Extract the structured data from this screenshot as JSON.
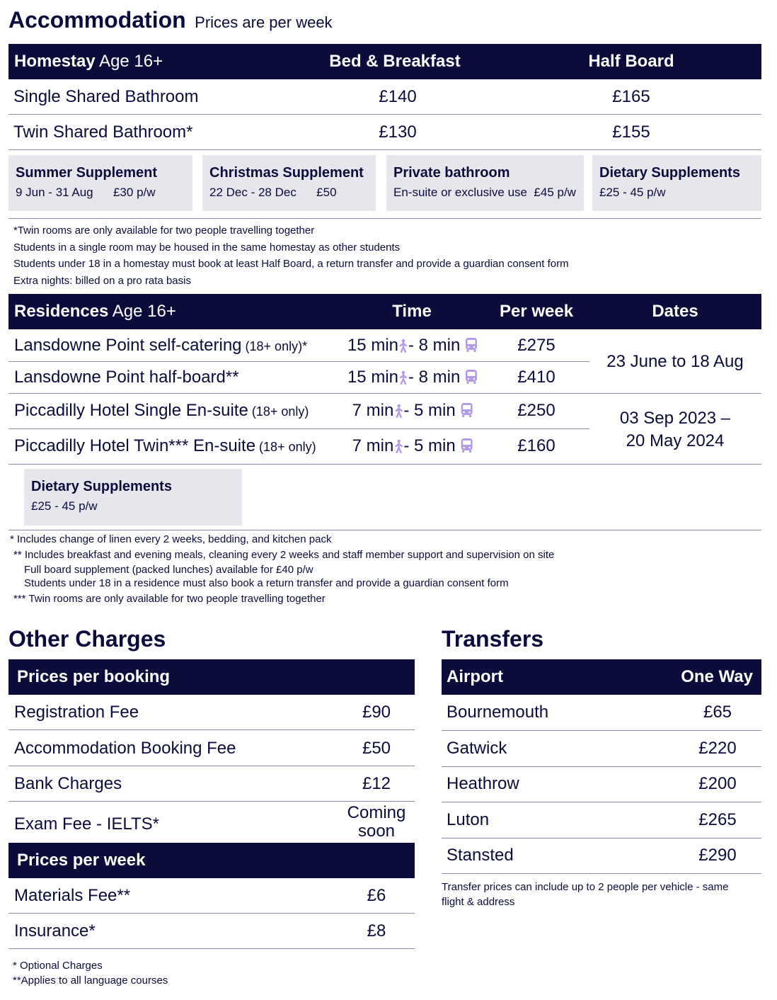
{
  "accommodation": {
    "title": "Accommodation",
    "subtitle": "Prices are per week",
    "homestay": {
      "header": {
        "name_bold": "Homestay",
        "name_rest": " Age 16+",
        "bb": "Bed & Breakfast",
        "hb": "Half Board"
      },
      "rows": [
        {
          "name": "Single Shared Bathroom",
          "bb": "£140",
          "hb": "£165"
        },
        {
          "name": "Twin Shared Bathroom*",
          "bb": "£130",
          "hb": "£155"
        }
      ],
      "supplements": [
        {
          "title": "Summer Supplement",
          "detail": "9 Jun - 31 Aug      £30 p/w"
        },
        {
          "title": "Christmas Supplement",
          "detail": "22 Dec - 28 Dec      £50"
        },
        {
          "title": "Private bathroom",
          "detail": "En-suite or exclusive use  £45 p/w"
        },
        {
          "title": "Dietary Supplements",
          "detail": "£25 - 45 p/w"
        }
      ],
      "notes": [
        "*Twin rooms are only available for two people travelling together",
        "Students in a single room may be housed in the same homestay  as other students",
        "Students under 18 in a homestay must book at least Half Board, a return transfer and provide a guardian consent form",
        "Extra nights: billed on a pro rata basis"
      ]
    },
    "residences": {
      "header": {
        "name_bold": "Residences",
        "name_rest": " Age 16+",
        "time": "Time",
        "per_week": "Per week",
        "dates": "Dates"
      },
      "rows": [
        {
          "name": "Lansdowne Point self-catering",
          "suffix": " (18+ only)*",
          "walk": "15 min",
          "bus": "- 8 min",
          "price": "£275"
        },
        {
          "name": "Lansdowne Point half-board**",
          "suffix": "",
          "walk": "15 min",
          "bus": "- 8 min",
          "price": "£410"
        },
        {
          "name": "Piccadilly Hotel Single En-suite",
          "suffix": " (18+ only)",
          "walk": "7 min",
          "bus": "- 5 min",
          "price": "£250"
        },
        {
          "name": "Piccadilly Hotel Twin*** En-suite",
          "suffix": " (18+ only)",
          "walk": "7 min",
          "bus": "- 5 min",
          "price": "£160"
        }
      ],
      "dates": [
        "23 June to 18 Aug",
        "03 Sep 2023 –",
        "20 May 2024"
      ],
      "supplement": {
        "title": "Dietary Supplements",
        "detail": "£25 - 45 p/w"
      },
      "notes": [
        "* Includes change of linen every 2 weeks, bedding, and kitchen pack",
        "** Includes breakfast and evening meals, cleaning every 2 weeks and staff member support and supervision on site",
        "Full board supplement (packed lunches) available for £40 p/w",
        "Students under 18 in a residence must also book a return transfer and provide a guardian consent form",
        "*** Twin rooms are only available for two people travelling together"
      ]
    }
  },
  "other_charges": {
    "title": "Other Charges",
    "per_booking": "Prices per booking",
    "booking_rows": [
      {
        "name": "Registration Fee",
        "price": "£90"
      },
      {
        "name": "Accommodation Booking Fee",
        "price": "£50"
      },
      {
        "name": "Bank Charges",
        "price": "£12"
      },
      {
        "name": "Exam Fee - IELTS*",
        "price": "Coming soon"
      }
    ],
    "per_week": "Prices per week",
    "week_rows": [
      {
        "name": "Materials Fee**",
        "price": "£6"
      },
      {
        "name": "Insurance*",
        "price": "£8"
      }
    ],
    "notes": [
      "* Optional Charges",
      "**Applies to all language courses"
    ]
  },
  "transfers": {
    "title": "Transfers",
    "header": {
      "airport": "Airport",
      "one_way": "One Way"
    },
    "rows": [
      {
        "name": "Bournemouth",
        "price": "£65"
      },
      {
        "name": "Gatwick",
        "price": "£220"
      },
      {
        "name": "Heathrow",
        "price": "£200"
      },
      {
        "name": "Luton",
        "price": "£265"
      },
      {
        "name": "Stansted",
        "price": "£290"
      }
    ],
    "notes": [
      "Transfer prices can include up to 2 people per vehicle - same",
      "flight & address"
    ]
  },
  "colors": {
    "navy": "#0b0c3c",
    "grey_box": "#e6e6ec",
    "icon_purple": "#b39be8"
  },
  "icons": {
    "walk": "walking-person-icon",
    "bus": "bus-icon"
  }
}
